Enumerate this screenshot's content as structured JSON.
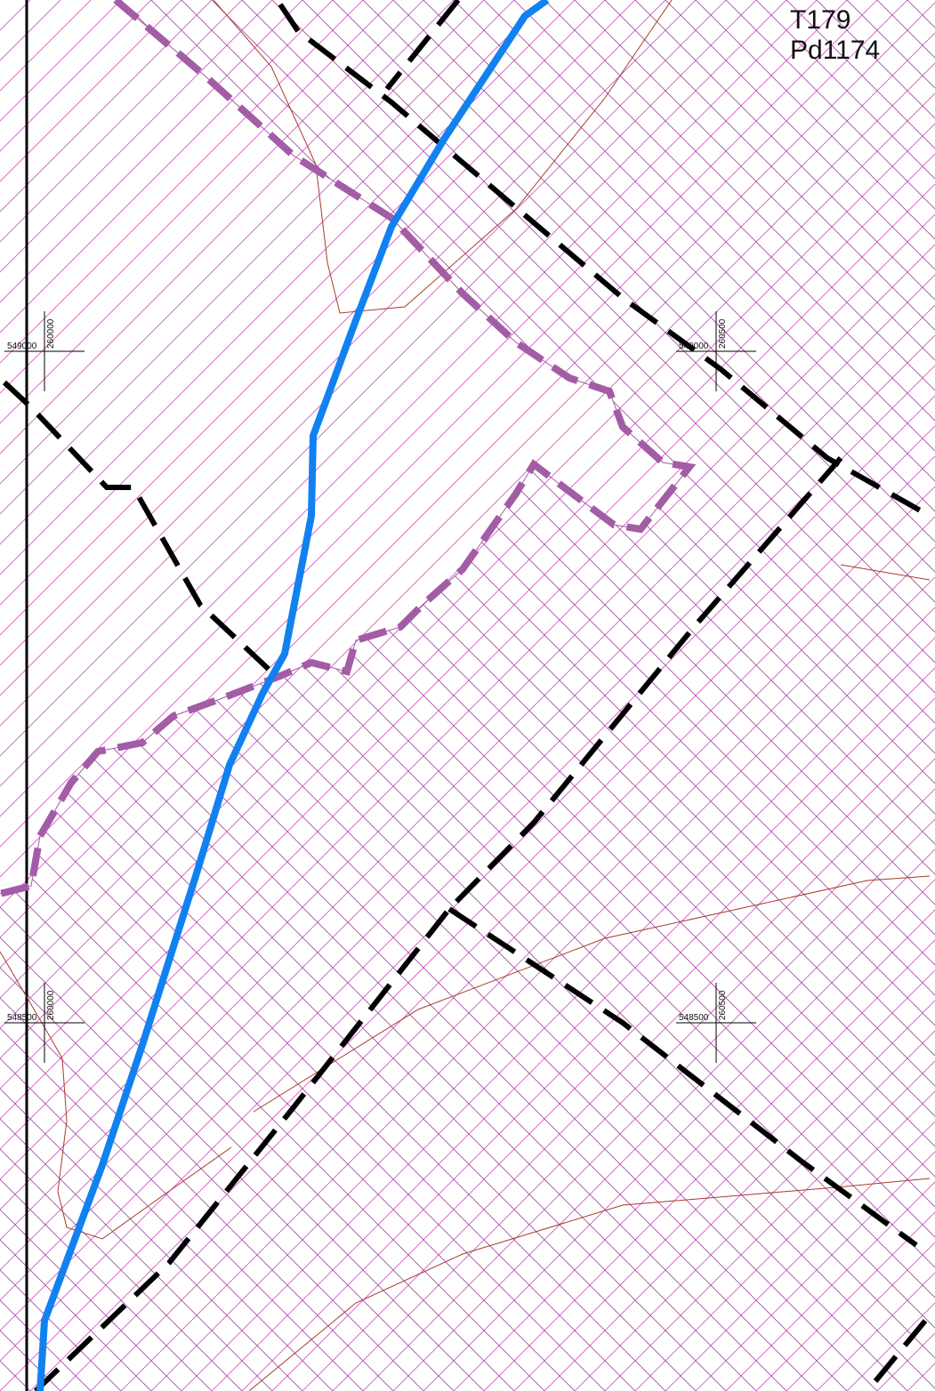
{
  "sheet": {
    "line1": "T179",
    "line2": "Pd1174"
  },
  "grid_ticks": [
    {
      "easting": "549000",
      "northing": "260000"
    },
    {
      "easting": "549000",
      "northing": "260500"
    },
    {
      "easting": "548500",
      "northing": "260000"
    },
    {
      "easting": "548500",
      "northing": "260500"
    }
  ],
  "colors": {
    "hatch": "#d25bc5",
    "hatch_dark": "#9b4a9b",
    "zone_boundary": "#a35ca6",
    "stream": "#1181f0",
    "parcel_boundary": "#000000",
    "contour": "#a83a2a",
    "frame": "#000000"
  },
  "layers": [
    "diagonal-hatch",
    "cross-hatch",
    "zone-boundary",
    "parcel-boundaries",
    "stream",
    "contours",
    "grid-ticks",
    "sheet-label"
  ]
}
